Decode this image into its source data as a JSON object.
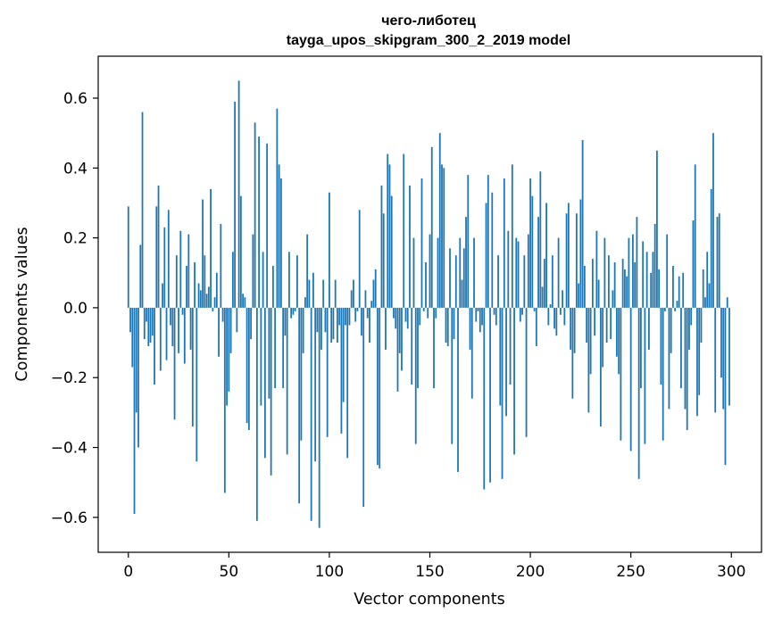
{
  "chart_data": {
    "type": "bar",
    "title": "чего-либотец",
    "subtitle": "tayga_upos_skipgram_300_2_2019 model",
    "xlabel": "Vector components",
    "ylabel": "Components values",
    "xlim": [
      -15,
      315
    ],
    "ylim": [
      -0.7,
      0.72
    ],
    "xticks": [
      0,
      50,
      100,
      150,
      200,
      250,
      300
    ],
    "yticks": [
      -0.6,
      -0.4,
      -0.2,
      0.0,
      0.2,
      0.4,
      0.6
    ],
    "ytick_labels": [
      "−0.6",
      "−0.4",
      "−0.2",
      "0.0",
      "0.2",
      "0.4",
      "0.6"
    ],
    "xtick_labels": [
      "0",
      "50",
      "100",
      "150",
      "200",
      "250",
      "300"
    ],
    "bar_color": "#1f77b4",
    "grid": false,
    "values": [
      0.29,
      -0.07,
      -0.17,
      -0.59,
      -0.3,
      -0.4,
      0.18,
      0.56,
      -0.09,
      -0.04,
      -0.11,
      -0.1,
      -0.08,
      -0.22,
      0.29,
      0.35,
      -0.18,
      0.07,
      0.23,
      -0.15,
      0.28,
      -0.05,
      -0.11,
      -0.32,
      0.15,
      -0.13,
      0.22,
      -0.02,
      -0.16,
      0.12,
      0.21,
      -0.12,
      -0.34,
      0.13,
      -0.44,
      0.07,
      0.05,
      0.31,
      0.15,
      0.04,
      0.06,
      0.34,
      -0.01,
      0.03,
      0.1,
      -0.14,
      0.24,
      -0.04,
      -0.53,
      -0.28,
      -0.24,
      -0.13,
      0.16,
      0.59,
      -0.07,
      0.65,
      0.32,
      0.04,
      0.03,
      -0.33,
      -0.35,
      -0.09,
      0.21,
      0.53,
      -0.61,
      0.49,
      -0.28,
      0.16,
      -0.43,
      0.47,
      -0.26,
      -0.48,
      0.12,
      -0.23,
      0.57,
      0.41,
      0.37,
      -0.23,
      -0.08,
      -0.42,
      0.16,
      -0.03,
      -0.02,
      -0.01,
      0.15,
      -0.56,
      -0.38,
      -0.13,
      0.03,
      0.21,
      0.08,
      -0.61,
      0.1,
      -0.44,
      -0.07,
      -0.63,
      -0.12,
      0.08,
      -0.07,
      -0.37,
      0.33,
      -0.1,
      -0.09,
      0.08,
      -0.1,
      -0.05,
      -0.36,
      -0.27,
      -0.05,
      -0.43,
      -0.05,
      0.05,
      0.08,
      -0.04,
      -0.01,
      0.28,
      -0.08,
      -0.57,
      0.05,
      -0.03,
      -0.1,
      0.02,
      0.08,
      0.11,
      -0.45,
      -0.46,
      0.35,
      0.27,
      -0.12,
      0.44,
      0.41,
      0.32,
      -0.03,
      -0.06,
      -0.24,
      -0.13,
      -0.18,
      0.44,
      -0.04,
      -0.06,
      0.35,
      -0.22,
      0.2,
      -0.39,
      -0.23,
      -0.05,
      0.37,
      -0.01,
      0.13,
      -0.03,
      0.21,
      0.46,
      -0.23,
      -0.03,
      0.2,
      0.5,
      0.41,
      0.4,
      -0.1,
      -0.11,
      0.17,
      -0.39,
      -0.09,
      0.15,
      -0.47,
      0.2,
      0.08,
      0.17,
      0.26,
      0.38,
      -0.12,
      -0.26,
      0.2,
      -0.04,
      -0.01,
      -0.07,
      -0.05,
      -0.52,
      0.3,
      0.38,
      -0.5,
      0.33,
      -0.02,
      -0.05,
      0.15,
      -0.28,
      -0.49,
      0.37,
      -0.31,
      0.22,
      -0.22,
      0.41,
      -0.42,
      0.2,
      0.19,
      -0.04,
      -0.02,
      0.15,
      -0.37,
      0.21,
      0.37,
      0.32,
      -0.01,
      -0.11,
      0.26,
      0.39,
      0.06,
      0.14,
      0.3,
      -0.05,
      0.01,
      0.15,
      -0.06,
      -0.08,
      0.2,
      -0.02,
      0.05,
      -0.05,
      0.27,
      0.3,
      -0.12,
      -0.26,
      -0.13,
      0.27,
      0.07,
      0.31,
      0.48,
      0.12,
      -0.1,
      -0.3,
      -0.19,
      0.14,
      -0.08,
      0.22,
      0.08,
      -0.34,
      -0.17,
      0.2,
      -0.1,
      0.15,
      -0.09,
      0.05,
      0.13,
      -0.14,
      -0.19,
      -0.38,
      0.14,
      0.11,
      0.09,
      0.2,
      -0.41,
      0.21,
      0.13,
      0.26,
      -0.49,
      -0.23,
      0.19,
      -0.39,
      0.16,
      -0.12,
      0.1,
      0.16,
      0.24,
      0.45,
      0.11,
      -0.22,
      -0.38,
      -0.01,
      0.21,
      -0.29,
      -0.13,
      0.12,
      -0.01,
      0.02,
      0.09,
      -0.23,
      0.1,
      -0.29,
      -0.35,
      -0.12,
      -0.05,
      0.25,
      0.41,
      -0.31,
      -0.25,
      -0.1,
      0.11,
      0.03,
      0.16,
      0.07,
      0.34,
      0.5,
      -0.3,
      0.26,
      0.27,
      -0.2,
      -0.29,
      -0.45,
      0.03,
      -0.28
    ]
  }
}
